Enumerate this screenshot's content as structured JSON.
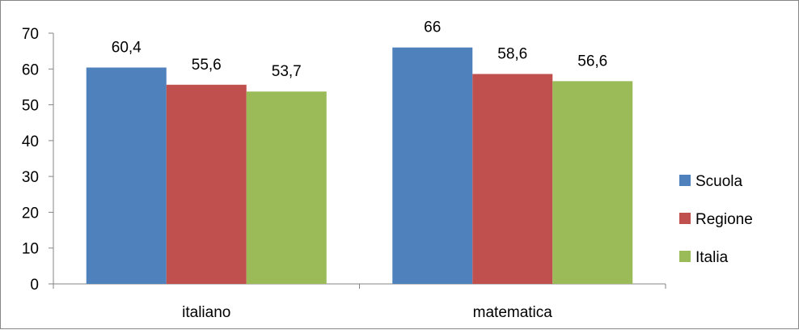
{
  "chart_data": {
    "type": "bar",
    "categories": [
      "italiano",
      "matematica"
    ],
    "series": [
      {
        "name": "Scuola",
        "values": [
          60.4,
          66
        ],
        "labels": [
          "60,4",
          "66"
        ],
        "color": "#4F81BD"
      },
      {
        "name": "Regione",
        "values": [
          55.6,
          58.6
        ],
        "labels": [
          "55,6",
          "58,6"
        ],
        "color": "#C0504D"
      },
      {
        "name": "Italia",
        "values": [
          53.7,
          56.6
        ],
        "labels": [
          "53,7",
          "56,6"
        ],
        "color": "#9BBB59"
      }
    ],
    "yticks": [
      "0",
      "10",
      "20",
      "30",
      "40",
      "50",
      "60",
      "70"
    ],
    "ylim": [
      0,
      70
    ],
    "grid": false,
    "legend_position": "right"
  }
}
